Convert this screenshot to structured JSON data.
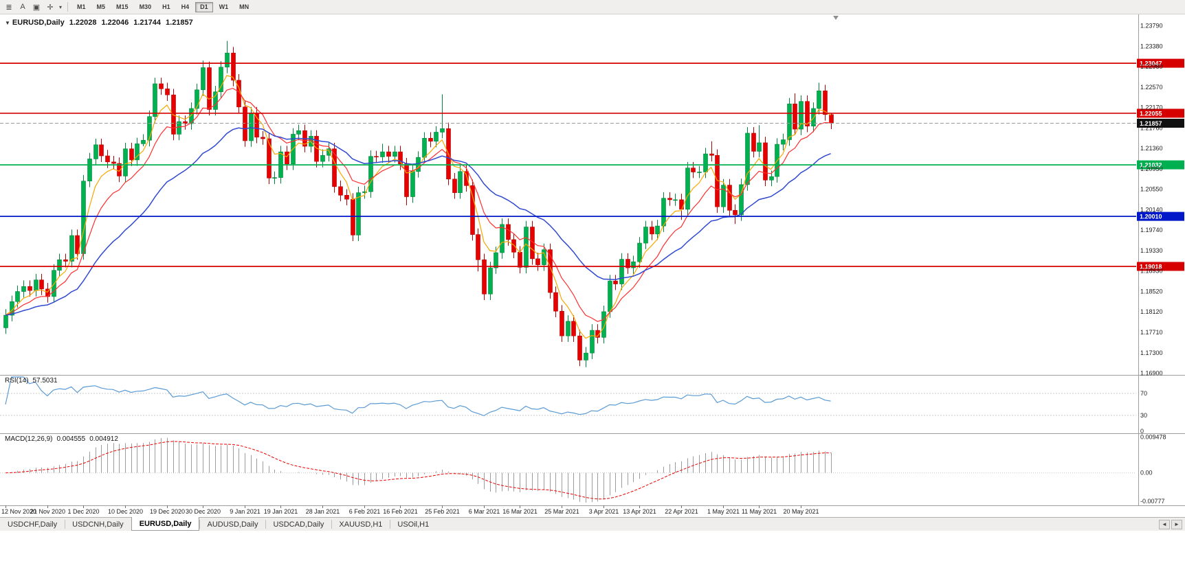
{
  "toolbar": {
    "icons": [
      {
        "name": "menu-icon",
        "glyph": "≣"
      },
      {
        "name": "font-icon",
        "glyph": "A"
      },
      {
        "name": "chart-window-icon",
        "glyph": "▣"
      },
      {
        "name": "crosshair-icon",
        "glyph": "✛"
      },
      {
        "name": "dropdown-arrow-icon",
        "glyph": "▾"
      }
    ],
    "timeframes": [
      "M1",
      "M5",
      "M15",
      "M30",
      "H1",
      "H4",
      "D1",
      "W1",
      "MN"
    ],
    "active_timeframe": "D1"
  },
  "chart": {
    "title": {
      "symbol": "EURUSD,Daily",
      "open": "1.22028",
      "high": "1.22046",
      "low": "1.21744",
      "close": "1.21857"
    },
    "price_axis": [
      "1.23790",
      "1.23380",
      "1.22980",
      "1.22570",
      "1.22170",
      "1.21760",
      "1.21360",
      "1.20950",
      "1.20550",
      "1.20140",
      "1.19740",
      "1.19330",
      "1.18930",
      "1.18520",
      "1.18120",
      "1.17710",
      "1.17300",
      "1.16900"
    ],
    "levels": [
      {
        "price": 1.23047,
        "label": "1.23047",
        "color": "#d60000",
        "kind": "hline"
      },
      {
        "price": 1.22055,
        "label": "1.22055",
        "color": "#d60000",
        "kind": "hline"
      },
      {
        "price": 1.21857,
        "label": "1.21857",
        "color": "#101010",
        "kind": "bid"
      },
      {
        "price": 1.21032,
        "label": "1.21032",
        "color": "#00b050",
        "kind": "hline"
      },
      {
        "price": 1.2001,
        "label": "1.20010",
        "color": "#0018c8",
        "kind": "hline"
      },
      {
        "price": 1.19018,
        "label": "1.19018",
        "color": "#d60000",
        "kind": "hline"
      }
    ]
  },
  "chart_data": {
    "type": "candlestick",
    "symbol": "EURUSD",
    "timeframe": "Daily",
    "up_color": "#00b14f",
    "down_color": "#e60000",
    "candles": [
      [
        1.178,
        1.1817,
        1.1768,
        1.1805
      ],
      [
        1.1805,
        1.1844,
        1.1793,
        1.1832
      ],
      [
        1.1832,
        1.1864,
        1.182,
        1.1852
      ],
      [
        1.1852,
        1.1874,
        1.184,
        1.1862
      ],
      [
        1.1862,
        1.1874,
        1.1842,
        1.1854
      ],
      [
        1.1854,
        1.1887,
        1.1842,
        1.1875
      ],
      [
        1.1875,
        1.1887,
        1.1845,
        1.1857
      ],
      [
        1.1857,
        1.1869,
        1.183,
        1.1842
      ],
      [
        1.1842,
        1.1906,
        1.183,
        1.1894
      ],
      [
        1.1894,
        1.1927,
        1.1882,
        1.1915
      ],
      [
        1.1915,
        1.1927,
        1.19,
        1.1912
      ],
      [
        1.1912,
        1.1975,
        1.19,
        1.1963
      ],
      [
        1.1963,
        1.1975,
        1.1915,
        1.1927
      ],
      [
        1.1927,
        1.2083,
        1.1915,
        1.2071
      ],
      [
        1.2071,
        1.2127,
        1.2059,
        1.2115
      ],
      [
        1.2115,
        1.2155,
        1.2103,
        1.2143
      ],
      [
        1.2143,
        1.2155,
        1.2109,
        1.2121
      ],
      [
        1.2121,
        1.2133,
        1.2097,
        1.2109
      ],
      [
        1.2109,
        1.2121,
        1.2094,
        1.2106
      ],
      [
        1.2106,
        1.2118,
        1.2069,
        1.2081
      ],
      [
        1.2081,
        1.2147,
        1.2069,
        1.2135
      ],
      [
        1.2135,
        1.2147,
        1.2101,
        1.2113
      ],
      [
        1.2113,
        1.2157,
        1.2101,
        1.2145
      ],
      [
        1.2145,
        1.2164,
        1.214,
        1.2152
      ],
      [
        1.2152,
        1.2211,
        1.214,
        1.2199
      ],
      [
        1.2199,
        1.2276,
        1.2187,
        1.2264
      ],
      [
        1.2264,
        1.2276,
        1.2242,
        1.2254
      ],
      [
        1.2254,
        1.2266,
        1.223,
        1.2242
      ],
      [
        1.2242,
        1.2254,
        1.2152,
        1.2164
      ],
      [
        1.2164,
        1.2201,
        1.2152,
        1.2189
      ],
      [
        1.2189,
        1.2201,
        1.2173,
        1.2185
      ],
      [
        1.2185,
        1.2227,
        1.2173,
        1.2215
      ],
      [
        1.2215,
        1.2264,
        1.2203,
        1.2252
      ],
      [
        1.2252,
        1.231,
        1.224,
        1.2296
      ],
      [
        1.2296,
        1.2308,
        1.2201,
        1.2213
      ],
      [
        1.2213,
        1.226,
        1.2201,
        1.2248
      ],
      [
        1.2248,
        1.2309,
        1.2236,
        1.2297
      ],
      [
        1.2297,
        1.2349,
        1.2285,
        1.2325
      ],
      [
        1.2325,
        1.2337,
        1.2259,
        1.2271
      ],
      [
        1.2271,
        1.2283,
        1.2206,
        1.2218
      ],
      [
        1.2218,
        1.223,
        1.2139,
        1.2151
      ],
      [
        1.2151,
        1.2218,
        1.2139,
        1.2206
      ],
      [
        1.2206,
        1.2218,
        1.2146,
        1.2158
      ],
      [
        1.2158,
        1.217,
        1.2143,
        1.2155
      ],
      [
        1.2155,
        1.2167,
        1.2065,
        1.2077
      ],
      [
        1.2077,
        1.209,
        1.2065,
        1.2078
      ],
      [
        1.2078,
        1.2141,
        1.2066,
        1.2129
      ],
      [
        1.2129,
        1.2141,
        1.2093,
        1.2105
      ],
      [
        1.2105,
        1.2176,
        1.2093,
        1.2164
      ],
      [
        1.2164,
        1.2183,
        1.2152,
        1.2171
      ],
      [
        1.2171,
        1.2183,
        1.2128,
        1.214
      ],
      [
        1.214,
        1.2172,
        1.2128,
        1.216
      ],
      [
        1.216,
        1.2172,
        1.2098,
        1.211
      ],
      [
        1.211,
        1.2134,
        1.2098,
        1.2122
      ],
      [
        1.2122,
        1.2147,
        1.211,
        1.2135
      ],
      [
        1.2135,
        1.2147,
        1.2048,
        1.206
      ],
      [
        1.206,
        1.2072,
        1.2031,
        1.2043
      ],
      [
        1.2043,
        1.2055,
        1.2023,
        1.2035
      ],
      [
        1.2035,
        1.2047,
        1.1952,
        1.1964
      ],
      [
        1.1964,
        1.206,
        1.1952,
        1.2048
      ],
      [
        1.2048,
        1.2062,
        1.2036,
        1.205
      ],
      [
        1.205,
        1.2132,
        1.2038,
        1.212
      ],
      [
        1.212,
        1.2131,
        1.2107,
        1.2119
      ],
      [
        1.2119,
        1.2145,
        1.2107,
        1.2129
      ],
      [
        1.2129,
        1.2141,
        1.2108,
        1.212
      ],
      [
        1.212,
        1.2141,
        1.2108,
        1.2129
      ],
      [
        1.2129,
        1.2141,
        1.2093,
        1.2105
      ],
      [
        1.2105,
        1.2117,
        1.2023,
        1.204
      ],
      [
        1.204,
        1.2102,
        1.2028,
        1.209
      ],
      [
        1.209,
        1.213,
        1.2078,
        1.2118
      ],
      [
        1.2118,
        1.2168,
        1.2106,
        1.2156
      ],
      [
        1.2156,
        1.2168,
        1.2138,
        1.215
      ],
      [
        1.215,
        1.218,
        1.2138,
        1.2168
      ],
      [
        1.2168,
        1.2243,
        1.2156,
        1.2175
      ],
      [
        1.2175,
        1.2187,
        1.2063,
        1.2075
      ],
      [
        1.2075,
        1.2087,
        1.2036,
        1.2048
      ],
      [
        1.2048,
        1.2102,
        1.2036,
        1.209
      ],
      [
        1.209,
        1.2102,
        1.205,
        1.2062
      ],
      [
        1.2062,
        1.2074,
        1.1953,
        1.1965
      ],
      [
        1.1965,
        1.1977,
        1.1892,
        1.1915
      ],
      [
        1.1915,
        1.1927,
        1.1835,
        1.1847
      ],
      [
        1.1847,
        1.1911,
        1.1835,
        1.1899
      ],
      [
        1.1899,
        1.1941,
        1.1887,
        1.1929
      ],
      [
        1.1929,
        1.1997,
        1.1917,
        1.1985
      ],
      [
        1.1985,
        1.1997,
        1.1943,
        1.1955
      ],
      [
        1.1955,
        1.1967,
        1.1918,
        1.193
      ],
      [
        1.193,
        1.1942,
        1.1888,
        1.19
      ],
      [
        1.19,
        1.1992,
        1.1888,
        1.198
      ],
      [
        1.198,
        1.1992,
        1.1905,
        1.1917
      ],
      [
        1.1917,
        1.1929,
        1.1893,
        1.1905
      ],
      [
        1.1905,
        1.1947,
        1.1893,
        1.1935
      ],
      [
        1.1935,
        1.1947,
        1.1838,
        1.185
      ],
      [
        1.185,
        1.1862,
        1.1801,
        1.1813
      ],
      [
        1.1813,
        1.1825,
        1.1752,
        1.1764
      ],
      [
        1.1764,
        1.1805,
        1.1752,
        1.1793
      ],
      [
        1.1793,
        1.1805,
        1.1752,
        1.1764
      ],
      [
        1.1764,
        1.1776,
        1.1704,
        1.1716
      ],
      [
        1.1716,
        1.1742,
        1.1702,
        1.173
      ],
      [
        1.173,
        1.1787,
        1.1718,
        1.1775
      ],
      [
        1.1775,
        1.1787,
        1.1749,
        1.1761
      ],
      [
        1.1761,
        1.1824,
        1.1749,
        1.1812
      ],
      [
        1.1812,
        1.1885,
        1.18,
        1.1873
      ],
      [
        1.1873,
        1.1885,
        1.1855,
        1.1867
      ],
      [
        1.1867,
        1.1928,
        1.1855,
        1.1916
      ],
      [
        1.1916,
        1.1928,
        1.1887,
        1.1899
      ],
      [
        1.1899,
        1.1923,
        1.1887,
        1.1911
      ],
      [
        1.1911,
        1.196,
        1.1899,
        1.1948
      ],
      [
        1.1948,
        1.1992,
        1.1936,
        1.198
      ],
      [
        1.198,
        1.1992,
        1.1954,
        1.1966
      ],
      [
        1.1966,
        1.1994,
        1.1954,
        1.1982
      ],
      [
        1.1982,
        1.2049,
        1.197,
        1.2037
      ],
      [
        1.2037,
        1.2049,
        1.2022,
        1.2034
      ],
      [
        1.2034,
        1.2046,
        1.2022,
        1.2034
      ],
      [
        1.2034,
        1.2046,
        1.1994,
        1.2015
      ],
      [
        1.2015,
        1.2109,
        1.2003,
        1.2097
      ],
      [
        1.2097,
        1.2109,
        1.2077,
        1.2089
      ],
      [
        1.2089,
        1.2101,
        1.2077,
        1.2089
      ],
      [
        1.2089,
        1.2137,
        1.2077,
        1.2125
      ],
      [
        1.2125,
        1.215,
        1.211,
        1.2122
      ],
      [
        1.2122,
        1.2134,
        1.2008,
        1.202
      ],
      [
        1.202,
        1.2075,
        1.2008,
        1.2063
      ],
      [
        1.2063,
        1.2075,
        1.2001,
        1.2013
      ],
      [
        1.2013,
        1.2025,
        1.1986,
        1.2004
      ],
      [
        1.2004,
        1.2076,
        1.1992,
        1.2064
      ],
      [
        1.2064,
        1.2178,
        1.2052,
        1.2166
      ],
      [
        1.2166,
        1.2178,
        1.2118,
        1.213
      ],
      [
        1.213,
        1.2182,
        1.2118,
        1.2147
      ],
      [
        1.2147,
        1.2159,
        1.2061,
        1.2073
      ],
      [
        1.2073,
        1.2092,
        1.2061,
        1.208
      ],
      [
        1.208,
        1.2156,
        1.2068,
        1.2144
      ],
      [
        1.2144,
        1.2165,
        1.2132,
        1.2153
      ],
      [
        1.2153,
        1.2236,
        1.2141,
        1.2224
      ],
      [
        1.2224,
        1.2245,
        1.2162,
        1.2174
      ],
      [
        1.2174,
        1.2241,
        1.2162,
        1.2229
      ],
      [
        1.2229,
        1.2241,
        1.2168,
        1.218
      ],
      [
        1.218,
        1.2227,
        1.2168,
        1.2215
      ],
      [
        1.2215,
        1.2266,
        1.2203,
        1.225
      ],
      [
        1.225,
        1.2262,
        1.2191,
        1.2203
      ],
      [
        1.2203,
        1.2205,
        1.2174,
        1.2186
      ]
    ],
    "x_labels": [
      {
        "text": "12 Nov 2020",
        "bar": 0
      },
      {
        "text": "21 Nov 2020",
        "bar": 7
      },
      {
        "text": "1 Dec 2020",
        "bar": 13
      },
      {
        "text": "10 Dec 2020",
        "bar": 20
      },
      {
        "text": "19 Dec 2020",
        "bar": 27
      },
      {
        "text": "30 Dec 2020",
        "bar": 33
      },
      {
        "text": "9 Jan 2021",
        "bar": 40
      },
      {
        "text": "19 Jan 2021",
        "bar": 46
      },
      {
        "text": "28 Jan 2021",
        "bar": 53
      },
      {
        "text": "6 Feb 2021",
        "bar": 60
      },
      {
        "text": "16 Feb 2021",
        "bar": 66
      },
      {
        "text": "25 Feb 2021",
        "bar": 73
      },
      {
        "text": "6 Mar 2021",
        "bar": 80
      },
      {
        "text": "16 Mar 2021",
        "bar": 86
      },
      {
        "text": "25 Mar 2021",
        "bar": 93
      },
      {
        "text": "3 Apr 2021",
        "bar": 100
      },
      {
        "text": "13 Apr 2021",
        "bar": 106
      },
      {
        "text": "22 Apr 2021",
        "bar": 113
      },
      {
        "text": "1 May 2021",
        "bar": 120
      },
      {
        "text": "11 May 2021",
        "bar": 126
      },
      {
        "text": "20 May 2021",
        "bar": 133
      }
    ],
    "moving_averages": [
      {
        "name": "ma-fast",
        "period": 5,
        "method": "ema",
        "color": "#f7a800"
      },
      {
        "name": "ma-mid",
        "period": 10,
        "method": "ema",
        "color": "#ff2e2e"
      },
      {
        "name": "ma-slow",
        "period": 26,
        "method": "ema",
        "color": "#2f49d0"
      }
    ],
    "rsi": {
      "label": "RSI(14)",
      "value": "57.5031",
      "period": 14,
      "color": "#5b9bd5",
      "axis_labels": [
        "70",
        "30",
        "0"
      ],
      "guides": [
        70,
        30
      ]
    },
    "macd": {
      "label": "MACD(12,26,9)",
      "value_main": "0.004555",
      "value_signal": "0.004912",
      "fast": 12,
      "slow": 26,
      "signal": 9,
      "hist_color": "#9b9b9b",
      "signal_color": "#e60000",
      "axis_labels": [
        "0.009478",
        "0.00",
        "-0.00777"
      ]
    }
  },
  "tabs": {
    "items": [
      "USDCHF,Daily",
      "USDCNH,Daily",
      "EURUSD,Daily",
      "AUDUSD,Daily",
      "USDCAD,Daily",
      "XAUUSD,H1",
      "USOil,H1"
    ],
    "active_index": 2,
    "scroll_left_glyph": "◄",
    "scroll_right_glyph": "►"
  }
}
